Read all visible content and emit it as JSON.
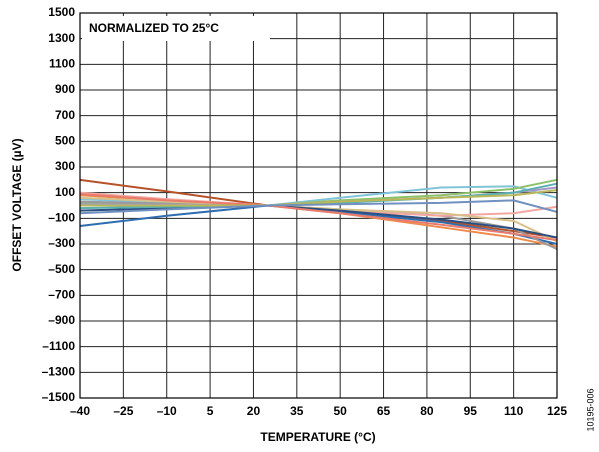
{
  "chart_data": {
    "type": "line",
    "annotation": "NORMALIZED TO 25°C",
    "figure_id": "10195-006",
    "x_label": "TEMPERATURE (°C)",
    "y_label": "OFFSET VOLTAGE (µV)",
    "grid": true,
    "xlim": [
      -40,
      125
    ],
    "xticks": [
      {
        "value": -40,
        "label": "–40"
      },
      {
        "value": -25,
        "label": "–25"
      },
      {
        "value": -10,
        "label": "–10"
      },
      5,
      20,
      35,
      50,
      65,
      80,
      95,
      110,
      125
    ],
    "ylim": [
      -1500,
      1500
    ],
    "yticks": [
      {
        "value": -1500,
        "label": "–1500"
      },
      {
        "value": -1300,
        "label": "–1300"
      },
      {
        "value": -1100,
        "label": "–1100"
      },
      {
        "value": -900,
        "label": "–900"
      },
      {
        "value": -700,
        "label": "–700"
      },
      {
        "value": -500,
        "label": "–500"
      },
      {
        "value": -300,
        "label": "–300"
      },
      {
        "value": -100,
        "label": "–100"
      },
      100,
      300,
      500,
      700,
      900,
      1100,
      1300,
      1500
    ],
    "x": [
      -40,
      -10,
      25,
      50,
      85,
      110,
      125
    ],
    "series": [
      {
        "color": "#b5522a",
        "values": [
          200,
          110,
          0,
          -50,
          -120,
          -200,
          -250
        ]
      },
      {
        "color": "#2e6db0",
        "values": [
          -160,
          -80,
          0,
          -50,
          -130,
          -220,
          -300
        ]
      },
      {
        "color": "#7fc4d8",
        "values": [
          50,
          20,
          0,
          60,
          140,
          150,
          60
        ]
      },
      {
        "color": "#8dc06b",
        "values": [
          20,
          10,
          0,
          40,
          80,
          130,
          200
        ]
      },
      {
        "color": "#f08a4b",
        "values": [
          80,
          40,
          0,
          -60,
          -170,
          -250,
          -320
        ]
      },
      {
        "color": "#9a9a9a",
        "values": [
          30,
          15,
          0,
          -30,
          -80,
          -180,
          -340
        ]
      },
      {
        "color": "#f2a7a0",
        "values": [
          100,
          50,
          0,
          -40,
          -80,
          -60,
          -10
        ]
      },
      {
        "color": "#d8c08a",
        "values": [
          60,
          30,
          0,
          -30,
          -60,
          -120,
          -280
        ]
      },
      {
        "color": "#2a4f80",
        "values": [
          -40,
          -20,
          0,
          -40,
          -110,
          -180,
          -250
        ]
      },
      {
        "color": "#a796c8",
        "values": [
          10,
          5,
          0,
          30,
          60,
          100,
          140
        ]
      },
      {
        "color": "#5ab0b0",
        "values": [
          -20,
          -10,
          0,
          20,
          60,
          100,
          170
        ]
      },
      {
        "color": "#e87b6b",
        "values": [
          90,
          40,
          0,
          -60,
          -150,
          -220,
          -270
        ]
      },
      {
        "color": "#b8b858",
        "values": [
          0,
          0,
          0,
          30,
          60,
          80,
          120
        ]
      },
      {
        "color": "#7090c0",
        "values": [
          -60,
          -30,
          0,
          10,
          20,
          40,
          -50
        ]
      }
    ]
  }
}
